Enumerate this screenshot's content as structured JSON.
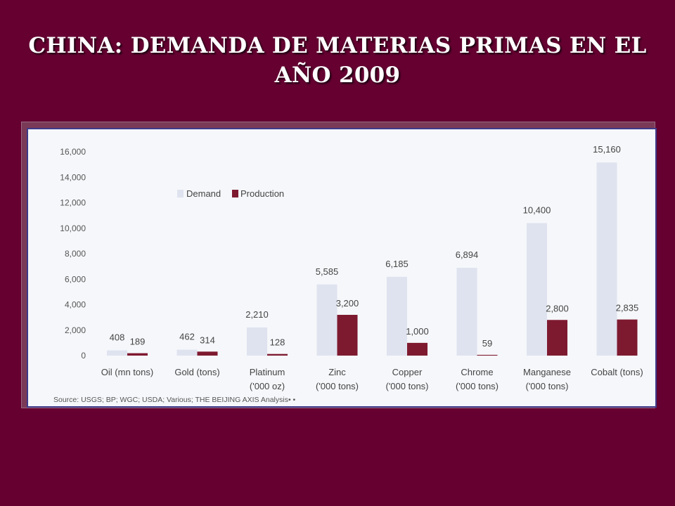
{
  "slide": {
    "title_line1": "CHINA: DEMANDA DE MATERIAS PRIMAS EN EL",
    "title_line2": "AÑO 2009"
  },
  "colors": {
    "background": "#650031",
    "demand": "#dfe3ef",
    "production": "#7e1a30",
    "panel": "#f5f7fa",
    "panel_border": "#3f3b8a"
  },
  "chart_data": {
    "type": "bar",
    "title": "",
    "xlabel": "",
    "ylabel": "",
    "ylim": [
      0,
      16000
    ],
    "yticks": [
      "16,000",
      "14,000",
      "12,000",
      "10,000",
      "8,000",
      "6,000",
      "4,000",
      "2,000",
      "0"
    ],
    "ytick_values": [
      16000,
      14000,
      12000,
      10000,
      8000,
      6000,
      4000,
      2000,
      0
    ],
    "grid": false,
    "legend_position": "top-left",
    "categories": [
      [
        "Oil (mn tons)"
      ],
      [
        "Gold (tons)"
      ],
      [
        "Platinum",
        "('000 oz)"
      ],
      [
        "Zinc",
        "('000 tons)"
      ],
      [
        "Copper",
        "('000 tons)"
      ],
      [
        "Chrome",
        "('000 tons)"
      ],
      [
        "Manganese",
        "('000 tons)"
      ],
      [
        "Cobalt (tons)"
      ]
    ],
    "series": [
      {
        "name": "Demand",
        "values": [
          408,
          462,
          2210,
          5585,
          6185,
          6894,
          10400,
          15160
        ],
        "labels": [
          "408",
          "462",
          "2,210",
          "5,585",
          "6,185",
          "6,894",
          "10,400",
          "15,160"
        ]
      },
      {
        "name": "Production",
        "values": [
          189,
          314,
          128,
          3200,
          1000,
          59,
          2800,
          2835
        ],
        "labels": [
          "189",
          "314",
          "128",
          "3,200",
          "1,000",
          "59",
          "2,800",
          "2,835"
        ]
      }
    ],
    "source": "Source: USGS; BP; WGC; USDA; Various; THE BEIJING AXIS Analysis• •"
  }
}
